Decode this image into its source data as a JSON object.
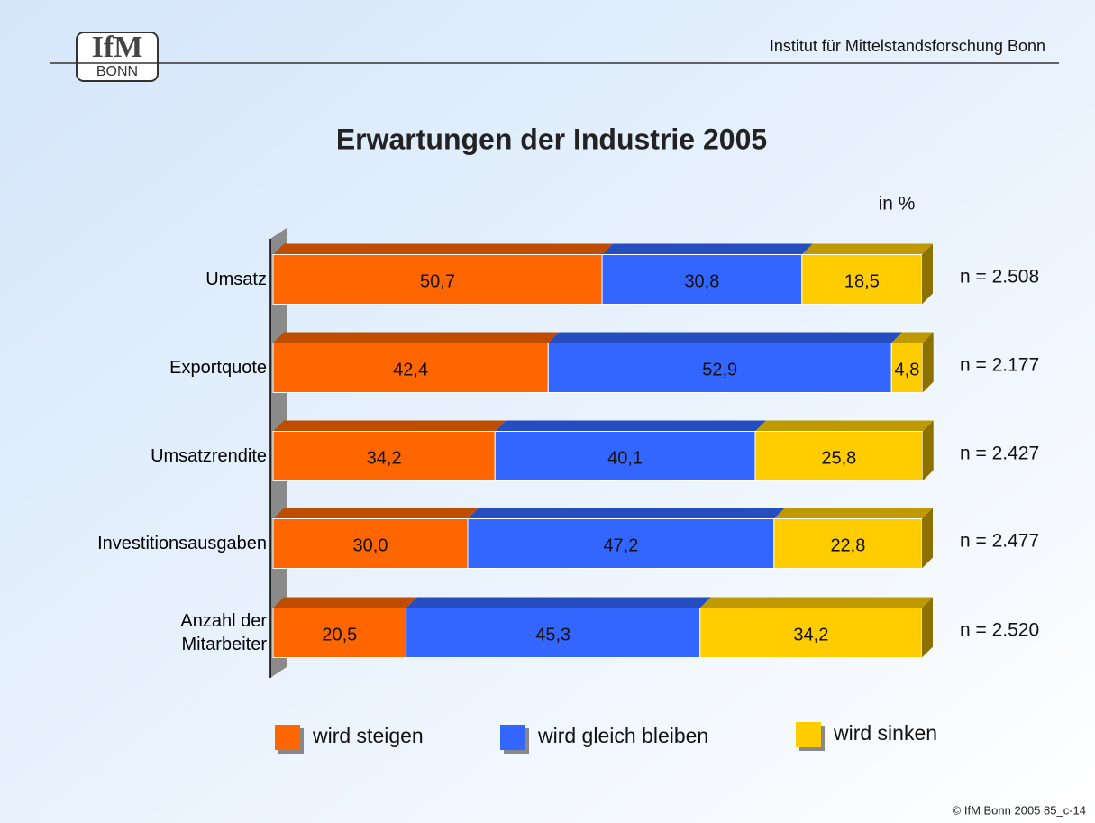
{
  "header": {
    "institute": "Institut für Mittelstandsforschung Bonn",
    "logo_top": "IfM",
    "logo_bottom": "BONN"
  },
  "footer": "© IfM Bonn 2005  85_c-14",
  "chart_data": {
    "type": "stacked_bar_horizontal",
    "title": "Erwartungen der Industrie 2005",
    "unit_label": "in %",
    "categories": [
      "Umsatz",
      "Exportquote",
      "Umsatzrendite",
      "Investitionsausgaben",
      "Anzahl der\nMitarbeiter"
    ],
    "series": [
      {
        "name": "wird steigen",
        "color": "#ff6600",
        "values": [
          50.7,
          42.4,
          34.2,
          30.0,
          20.5
        ],
        "value_labels": [
          "50,7",
          "42,4",
          "34,2",
          "30,0",
          "20,5"
        ]
      },
      {
        "name": "wird gleich bleiben",
        "color": "#3366ff",
        "values": [
          30.8,
          52.9,
          40.1,
          47.2,
          45.3
        ],
        "value_labels": [
          "30,8",
          "52,9",
          "40,1",
          "47,2",
          "45,3"
        ]
      },
      {
        "name": "wird sinken",
        "color": "#ffcc00",
        "values": [
          18.5,
          4.8,
          25.8,
          22.8,
          34.2
        ],
        "value_labels": [
          "18,5",
          "4,8",
          "25,8",
          "22,8",
          "34,2"
        ]
      }
    ],
    "annotations": [
      "n = 2.508",
      "n = 2.177",
      "n = 2.427",
      "n = 2.477",
      "n = 2.520"
    ],
    "xlim": [
      0,
      100
    ]
  }
}
